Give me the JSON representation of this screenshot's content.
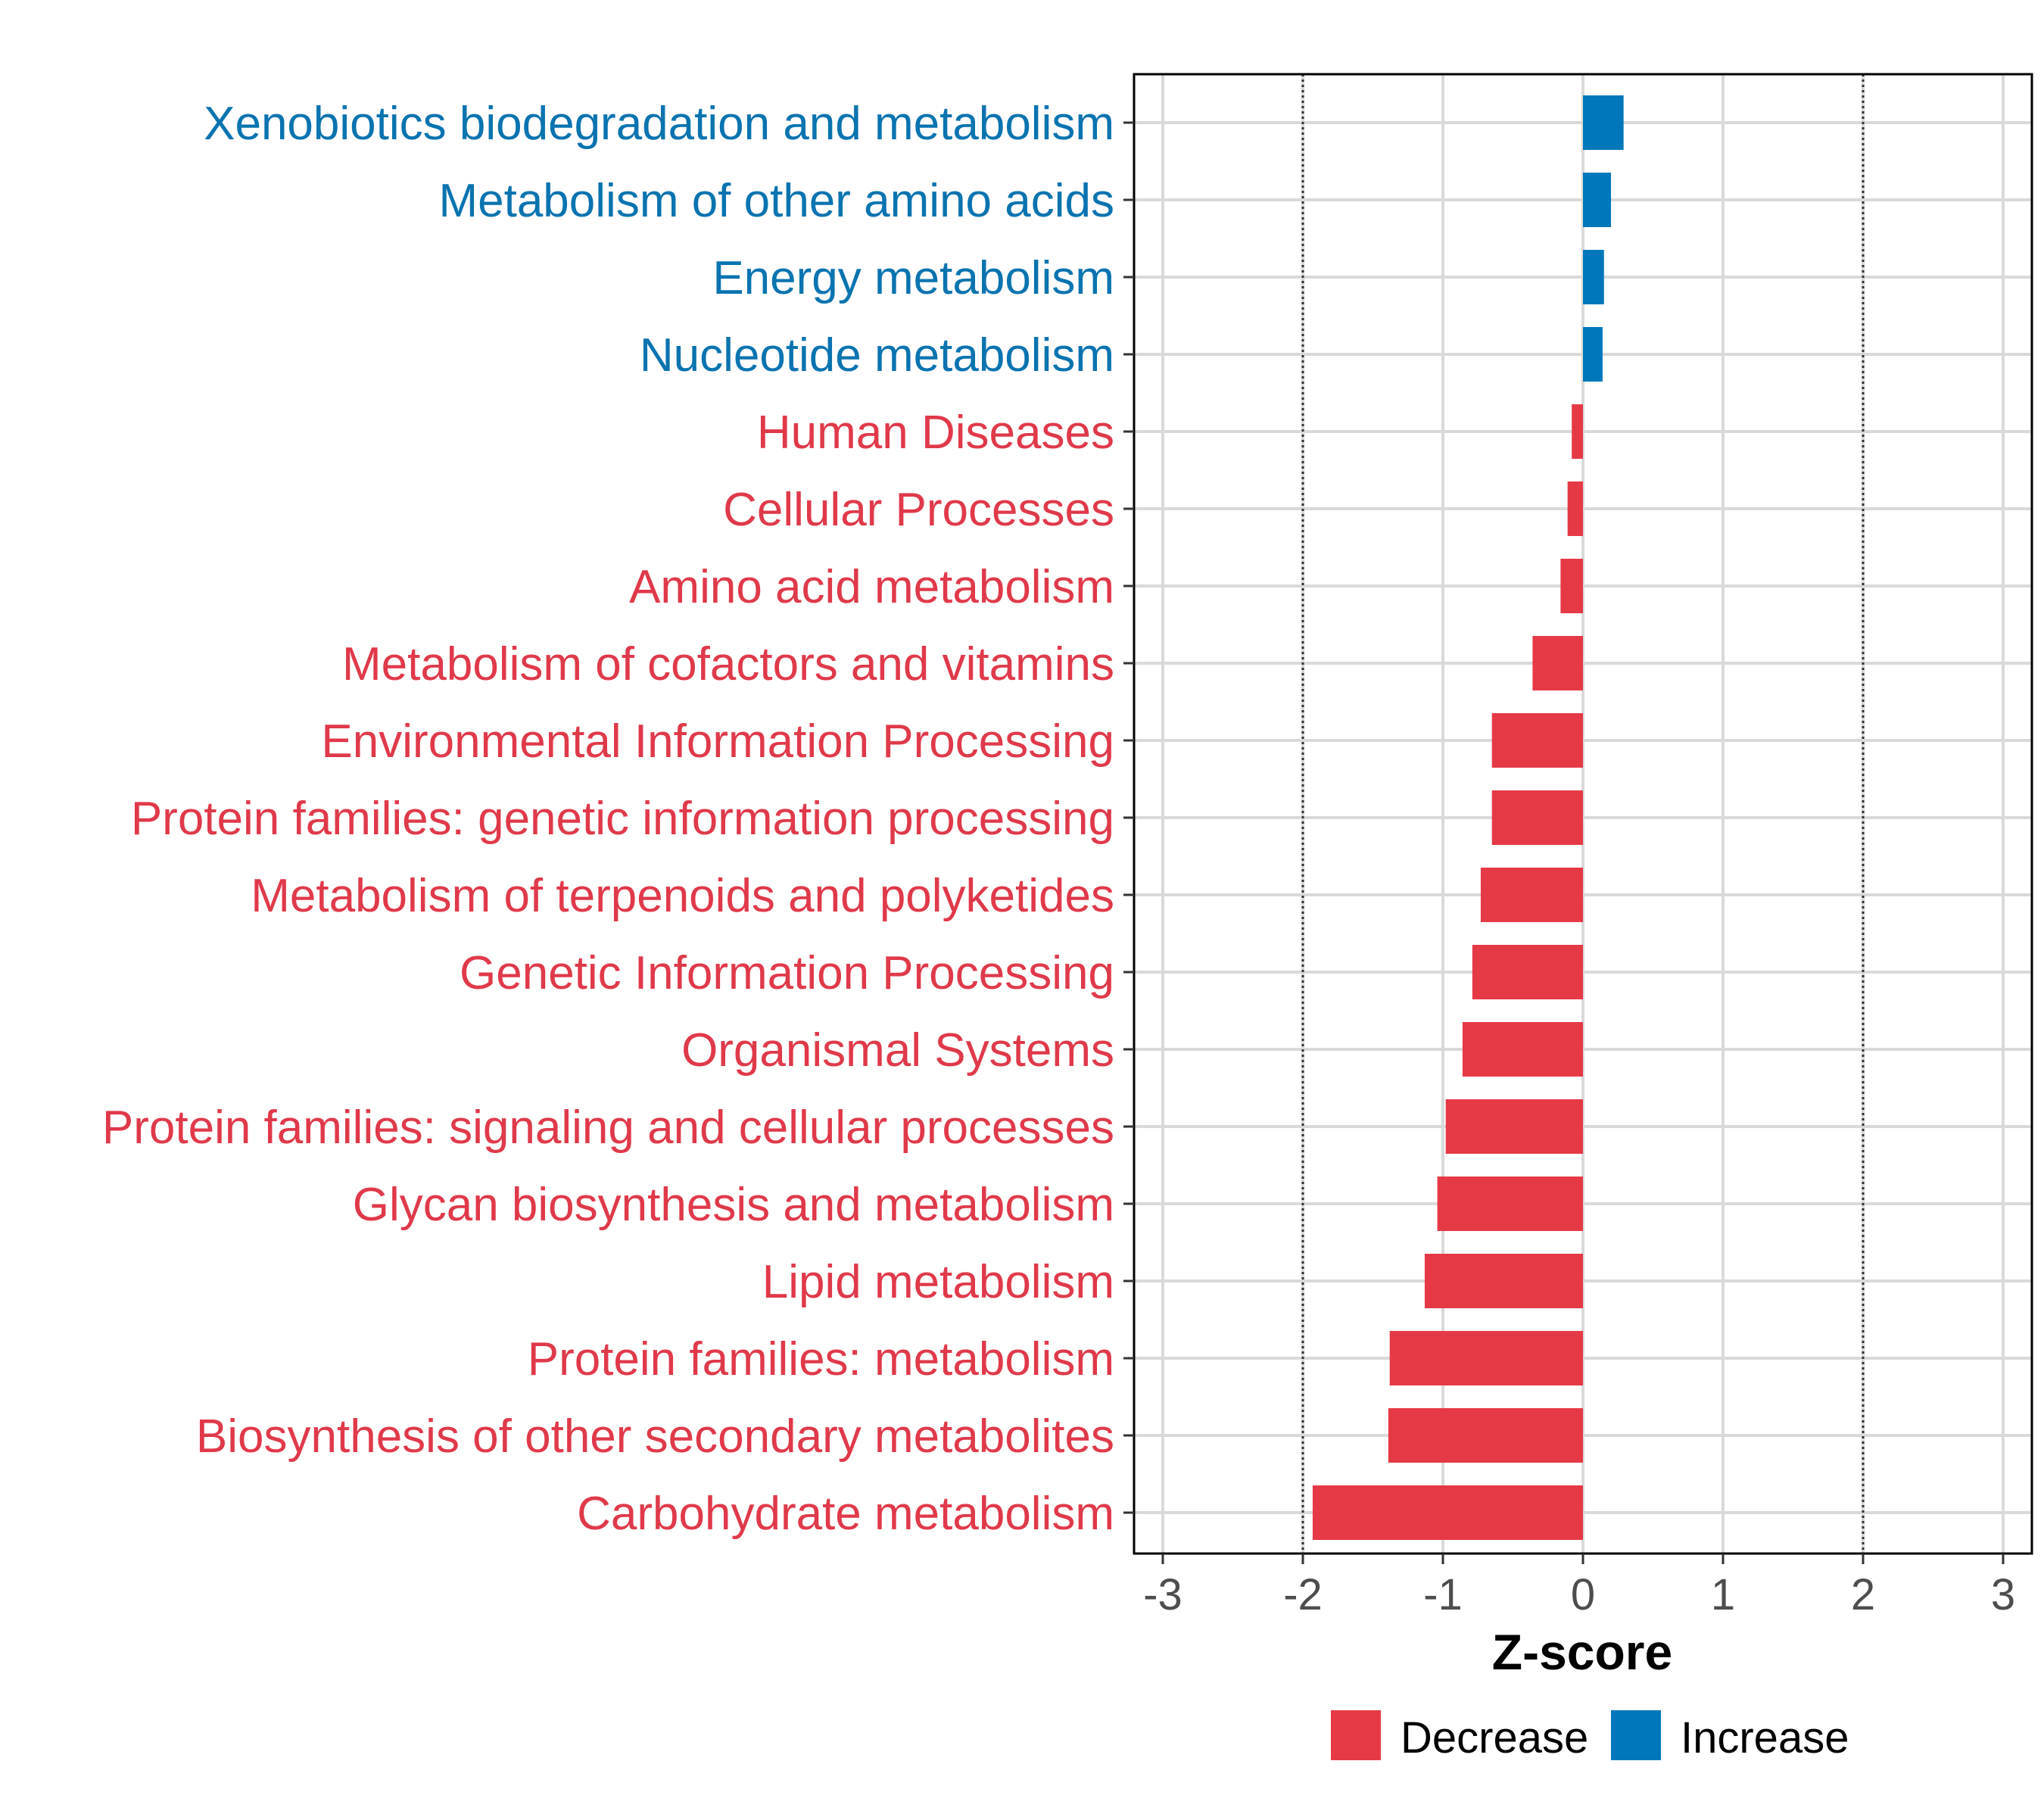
{
  "chart_data": {
    "type": "bar",
    "orientation": "horizontal",
    "title": "",
    "xlabel": "Z-score",
    "ylabel": "",
    "xlim": [
      -3,
      3
    ],
    "xticks": [
      "-3",
      "-2",
      "-1",
      "0",
      "1",
      "2",
      "3"
    ],
    "reference_lines": [
      -2,
      2
    ],
    "categories": [
      "Xenobiotics biodegradation and metabolism",
      "Metabolism of other amino acids",
      "Energy metabolism",
      "Nucleotide metabolism",
      "Human Diseases",
      "Cellular Processes",
      "Amino acid metabolism",
      "Metabolism of cofactors and vitamins",
      "Environmental Information Processing",
      "Protein families: genetic information processing",
      "Metabolism of terpenoids and polyketides",
      "Genetic Information Processing",
      "Organismal Systems",
      "Protein families: signaling and cellular processes",
      "Glycan biosynthesis and metabolism",
      "Lipid metabolism",
      "Protein families: metabolism",
      "Biosynthesis of other secondary metabolites",
      "Carbohydrate metabolism"
    ],
    "values": [
      0.29,
      0.2,
      0.15,
      0.14,
      -0.08,
      -0.11,
      -0.16,
      -0.36,
      -0.65,
      -0.65,
      -0.73,
      -0.79,
      -0.86,
      -0.98,
      -1.04,
      -1.13,
      -1.38,
      -1.39,
      -1.93
    ],
    "legend": {
      "position": "bottom",
      "entries": [
        {
          "name": "Decrease",
          "color": "#e63946"
        },
        {
          "name": "Increase",
          "color": "#0077bb"
        }
      ]
    }
  },
  "colors": {
    "decrease": "#e63946",
    "increase": "#0077bb",
    "label_decrease": "#e0394a",
    "label_increase": "#0a73b0",
    "grid": "#d9d9d9"
  }
}
